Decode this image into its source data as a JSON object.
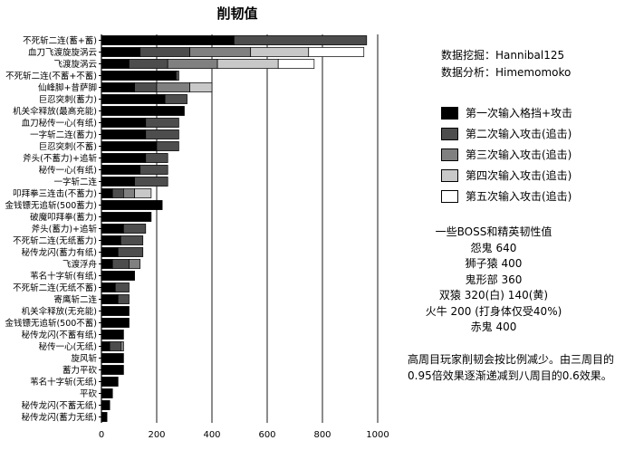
{
  "chart_data": {
    "type": "bar",
    "orientation": "horizontal",
    "stacked": true,
    "title": "削韧值",
    "xlabel": "",
    "ylabel": "",
    "xlim": [
      0,
      1000
    ],
    "xticks": [
      0,
      200,
      400,
      600,
      800,
      1000
    ],
    "grid": "vertical lines at x ticks",
    "legend_position": "right",
    "categories": [
      "不死斩二连(蓄+蓄)",
      "血刀飞渡旋旋涡云",
      "飞渡旋涡云",
      "不死斩二连(不蓄+不蓄)",
      "仙峰脚+昔萨脚",
      "巨忍突刺(蓄力)",
      "机关伞释放(最高充能)",
      "血刀秘传一心(有纸)",
      "一字斩二连(蓄力)",
      "巨忍突刺(不蓄)",
      "斧头(不蓄力)+追斩",
      "秘传一心(有纸)",
      "一字斩二连",
      "叩拜拳三连击(不蓄力)",
      "金钱镖无追斩(500蓄力)",
      "破魔叩拜拳(蓄力)",
      "斧头(蓄力)+追斩",
      "不死斩二连(无纸蓄力)",
      "秘传龙闪(蓄力有纸)",
      "飞渡浮舟",
      "苇名十字斩(有纸)",
      "不死斩二连(无纸不蓄)",
      "寄鹰斩二连",
      "机关伞释放(无充能)",
      "金钱镖无追斩(500不蓄)",
      "秘传龙闪(不蓄有纸)",
      "秘传一心(无纸)",
      "旋风斩",
      "蓄力平砍",
      "苇名十字斩(无纸)",
      "平砍",
      "秘传龙闪(不蓄无纸)",
      "秘传龙闪(蓄力无纸)"
    ],
    "series": [
      {
        "name": "第一次输入格挡+攻击",
        "color": "#000000",
        "values": [
          480,
          140,
          100,
          270,
          120,
          230,
          300,
          160,
          160,
          200,
          160,
          140,
          120,
          40,
          220,
          180,
          80,
          70,
          60,
          40,
          120,
          50,
          60,
          100,
          100,
          80,
          30,
          80,
          80,
          60,
          40,
          30,
          20
        ]
      },
      {
        "name": "第二次输入攻击(追击)",
        "color": "#4d4d4d",
        "values": [
          480,
          180,
          140,
          10,
          80,
          80,
          0,
          120,
          120,
          80,
          80,
          100,
          120,
          40,
          0,
          0,
          80,
          80,
          90,
          60,
          0,
          50,
          40,
          0,
          0,
          0,
          40,
          0,
          0,
          0,
          0,
          0,
          0
        ]
      },
      {
        "name": "第三次输入攻击(追击)",
        "color": "#808080",
        "values": [
          0,
          220,
          180,
          0,
          120,
          0,
          0,
          0,
          0,
          0,
          0,
          0,
          0,
          40,
          0,
          0,
          0,
          0,
          0,
          40,
          0,
          0,
          0,
          0,
          0,
          0,
          10,
          0,
          0,
          0,
          0,
          0,
          0
        ]
      },
      {
        "name": "第四次输入攻击(追击)",
        "color": "#c8c8c8",
        "values": [
          0,
          210,
          220,
          0,
          80,
          0,
          0,
          0,
          0,
          0,
          0,
          0,
          0,
          60,
          0,
          0,
          0,
          0,
          0,
          0,
          0,
          0,
          0,
          0,
          0,
          0,
          0,
          0,
          0,
          0,
          0,
          0,
          0
        ]
      },
      {
        "name": "第五次输入攻击(追击)",
        "color": "#ffffff",
        "values": [
          0,
          200,
          130,
          0,
          0,
          0,
          0,
          0,
          0,
          0,
          0,
          0,
          0,
          0,
          0,
          0,
          0,
          0,
          0,
          0,
          0,
          0,
          0,
          0,
          0,
          0,
          0,
          0,
          0,
          0,
          0,
          0,
          0
        ]
      }
    ]
  },
  "credits": {
    "mining": "数据挖掘：Hannibal125",
    "analysis": "数据分析：Himemomoko"
  },
  "toughness": {
    "title": "一些BOSS和精英韧性值",
    "items": [
      "怨鬼 640",
      "狮子猿 400",
      "鬼形部 360",
      "双猿 320(白) 140(黄)",
      "火牛 200 (打身体仅受40%)",
      "赤鬼 400"
    ]
  },
  "note": {
    "line1": "高周目玩家削韧会按比例减少。由三周目的",
    "line2": "0.95倍效果逐渐递减到八周目的0.6效果。"
  }
}
